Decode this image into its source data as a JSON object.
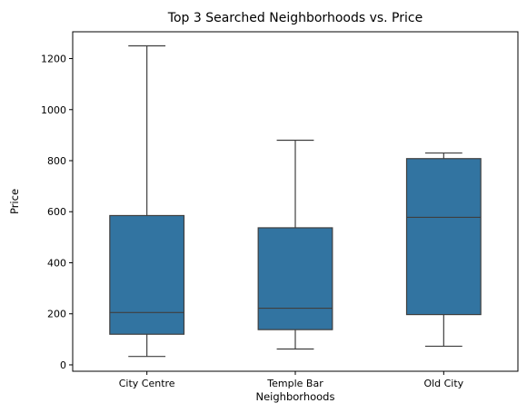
{
  "chart_data": {
    "type": "box",
    "title": "Top 3 Searched Neighborhoods vs. Price",
    "xlabel": "Neighborhoods",
    "ylabel": "Price",
    "ylim": [
      -25,
      1305
    ],
    "yticks": [
      0,
      200,
      400,
      600,
      800,
      1000,
      1200
    ],
    "categories": [
      "City Centre",
      "Temple Bar",
      "Old City"
    ],
    "boxes": [
      {
        "name": "City Centre",
        "min": 33,
        "q1": 120,
        "median": 205,
        "q3": 585,
        "max": 1250
      },
      {
        "name": "Temple Bar",
        "min": 62,
        "q1": 138,
        "median": 222,
        "q3": 537,
        "max": 880
      },
      {
        "name": "Old City",
        "min": 73,
        "q1": 197,
        "median": 578,
        "q3": 808,
        "max": 830
      }
    ],
    "colors": {
      "box": "#3274a1",
      "line": "#3f3f3f",
      "axis": "#000000"
    },
    "grid": false,
    "legend": "none"
  }
}
